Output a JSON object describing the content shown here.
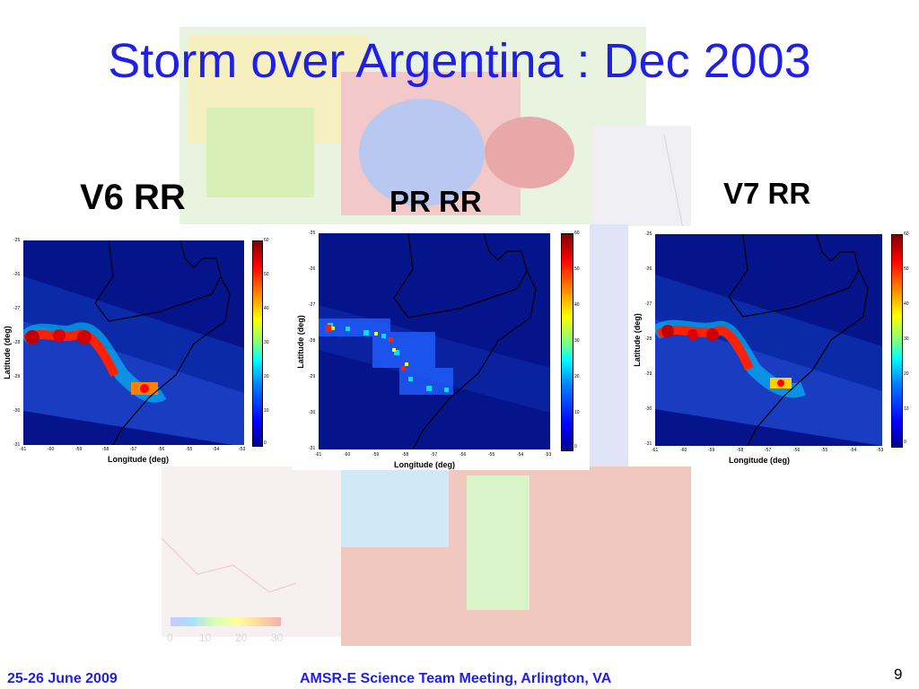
{
  "slide": {
    "title": "Storm over Argentina : Dec 2003",
    "page_number": "9",
    "footer_left": "25-26 June 2009",
    "footer_center": "AMSR-E Science Team Meeting, Arlington, VA"
  },
  "legend": {
    "ticks": [
      "0",
      "10",
      "20",
      "30"
    ]
  },
  "panels": [
    {
      "title": "V6 RR",
      "xlabel": "Longitude (deg)",
      "ylabel": "Latitude (deg)"
    },
    {
      "title": "PR RR",
      "xlabel": "Longitude (deg)",
      "ylabel": "Latitude (deg)"
    },
    {
      "title": "V7 RR",
      "xlabel": "Longitude (deg)",
      "ylabel": "Latitude (deg)"
    }
  ],
  "axes": {
    "x_ticks": [
      "-61",
      "-60",
      "-59",
      "-58",
      "-57",
      "-56",
      "-55",
      "-54",
      "-53"
    ],
    "y_ticks": [
      "-25",
      "-26",
      "-27",
      "-28",
      "-29",
      "-30",
      "-31"
    ],
    "colorbar_ticks": [
      "60",
      "50",
      "40",
      "30",
      "20",
      "10",
      "0"
    ]
  },
  "colors": {
    "title": "#1f1fe6",
    "plot_background": "#06148c",
    "rain_high": "#ff0000",
    "rain_mid": "#ffff00",
    "rain_low": "#00ffff"
  }
}
